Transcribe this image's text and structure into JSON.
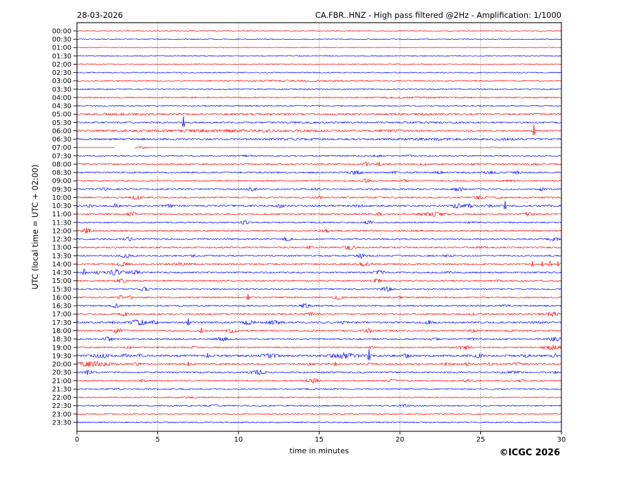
{
  "header": {
    "date": "28-03-2026",
    "station_title": "CA.FBR..HNZ - High pass filtered @2Hz - Amplification: 1/1000"
  },
  "footer": {
    "copyright": "©ICGC 2026"
  },
  "chart_data": {
    "type": "line",
    "subtype": "helicorder-seismogram",
    "title": "CA.FBR..HNZ - High pass filtered @2Hz - Amplification: 1/1000",
    "date": "28-03-2026",
    "xlabel": "time in minutes",
    "ylabel": "UTC (local time = UTC + 02:00)",
    "x_range": [
      0,
      30
    ],
    "x_ticks": [
      0,
      5,
      10,
      15,
      20,
      25,
      30
    ],
    "minutes_per_line": 30,
    "grid": "vertical-dotted-5min",
    "trace_colors": {
      "red": "#ff0000",
      "blue": "#0000ff"
    },
    "rows": [
      {
        "time": "00:00",
        "color": "red",
        "base": 0.3,
        "events": [
          [
            28.7,
            0.7,
            0.12
          ]
        ]
      },
      {
        "time": "00:30",
        "color": "blue",
        "base": 0.35,
        "events": []
      },
      {
        "time": "01:00",
        "color": "red",
        "base": 0.3,
        "events": []
      },
      {
        "time": "01:30",
        "color": "blue",
        "base": 0.4,
        "events": []
      },
      {
        "time": "02:00",
        "color": "red",
        "base": 0.35,
        "events": []
      },
      {
        "time": "02:30",
        "color": "blue",
        "base": 0.4,
        "events": []
      },
      {
        "time": "03:00",
        "color": "red",
        "base": 0.4,
        "events": [
          [
            13,
            0.25,
            3
          ]
        ]
      },
      {
        "time": "03:30",
        "color": "blue",
        "base": 0.45,
        "events": []
      },
      {
        "time": "04:00",
        "color": "red",
        "base": 0.5,
        "events": [
          [
            21,
            0.2,
            2
          ]
        ]
      },
      {
        "time": "04:30",
        "color": "blue",
        "base": 0.45,
        "events": []
      },
      {
        "time": "05:00",
        "color": "red",
        "base": 0.65,
        "events": [
          [
            3,
            0.2,
            1.5
          ],
          [
            13,
            0.2,
            1.5
          ],
          [
            21,
            0.25,
            1.5
          ]
        ]
      },
      {
        "time": "05:30",
        "color": "blue",
        "base": 0.55,
        "events": [
          [
            6.6,
            2.4,
            0.07
          ],
          [
            14,
            0.2,
            2
          ],
          [
            22,
            0.3,
            1.5
          ]
        ]
      },
      {
        "time": "06:00",
        "color": "red",
        "base": 0.55,
        "events": [
          [
            9,
            0.6,
            8
          ],
          [
            19.5,
            0.5,
            1
          ],
          [
            24.3,
            0.5,
            0.15
          ],
          [
            28.3,
            2.4,
            0.07
          ]
        ]
      },
      {
        "time": "06:30",
        "color": "blue",
        "base": 0.7,
        "events": [
          [
            13.5,
            0.4,
            1.2
          ],
          [
            22,
            0.45,
            1.5
          ],
          [
            26.5,
            0.4,
            0.6
          ]
        ]
      },
      {
        "time": "07:00",
        "color": "red",
        "base": 0.13,
        "events": [
          [
            4.05,
            0.85,
            0.35
          ],
          [
            25.9,
            0.5,
            0.5
          ]
        ],
        "gaps": [
          [
            2.35,
            3.55
          ]
        ]
      },
      {
        "time": "07:30",
        "color": "blue",
        "base": 0.45,
        "events": [
          [
            10.4,
            0.5,
            0.3
          ],
          [
            18.6,
            0.6,
            0.3
          ],
          [
            20.6,
            0.5,
            0.25
          ]
        ]
      },
      {
        "time": "08:00",
        "color": "red",
        "base": 0.55,
        "events": [
          [
            17.9,
            1.5,
            0.18
          ],
          [
            18.7,
            1.3,
            0.14
          ],
          [
            21.4,
            0.7,
            0.2
          ],
          [
            24.5,
            0.6,
            0.2
          ],
          [
            28.3,
            0.5,
            0.3
          ]
        ]
      },
      {
        "time": "08:30",
        "color": "blue",
        "base": 0.55,
        "events": [
          [
            17.3,
            1.6,
            0.3
          ],
          [
            19.6,
            0.6,
            0.2
          ],
          [
            22.4,
            0.7,
            0.25
          ],
          [
            25.6,
            0.8,
            0.4
          ],
          [
            27.3,
            0.9,
            0.25
          ]
        ]
      },
      {
        "time": "09:00",
        "color": "red",
        "base": 0.5,
        "events": [
          [
            17.9,
            1.7,
            0.22
          ],
          [
            20.3,
            0.9,
            0.15
          ],
          [
            26.8,
            0.5,
            0.3
          ]
        ]
      },
      {
        "time": "09:30",
        "color": "blue",
        "base": 0.55,
        "events": [
          [
            1.7,
            1.5,
            0.22
          ],
          [
            10.8,
            1.1,
            0.3
          ],
          [
            14.8,
            0.6,
            0.2
          ],
          [
            23.7,
            1.5,
            0.3
          ],
          [
            28.8,
            1.1,
            0.2
          ]
        ]
      },
      {
        "time": "10:00",
        "color": "red",
        "base": 0.55,
        "events": [
          [
            3.7,
            1.5,
            0.28
          ],
          [
            15.0,
            0.9,
            0.2
          ],
          [
            24.9,
            1.3,
            0.3
          ],
          [
            26.2,
            0.9,
            0.2
          ]
        ]
      },
      {
        "time": "10:30",
        "color": "blue",
        "base": 0.62,
        "events": [
          [
            0.8,
            1.1,
            0.15
          ],
          [
            2.4,
            1.3,
            0.2
          ],
          [
            5.7,
            1.2,
            0.18
          ],
          [
            12.6,
            1.1,
            0.2
          ],
          [
            17.4,
            0.7,
            0.3
          ],
          [
            23.6,
            1.5,
            0.4
          ],
          [
            24.3,
            1.2,
            0.2
          ],
          [
            25.6,
            0.9,
            0.2
          ],
          [
            26.5,
            1.9,
            0.07
          ],
          [
            29.2,
            0.7,
            0.2
          ]
        ]
      },
      {
        "time": "11:00",
        "color": "red",
        "base": 0.55,
        "events": [
          [
            3.4,
            1.7,
            0.28
          ],
          [
            18.7,
            1.0,
            0.2
          ],
          [
            22.0,
            1.5,
            0.7
          ],
          [
            27.9,
            1.4,
            0.28
          ]
        ]
      },
      {
        "time": "11:30",
        "color": "blue",
        "base": 0.5,
        "events": [
          [
            10.4,
            1.5,
            0.22
          ],
          [
            18.1,
            1.4,
            0.22
          ],
          [
            24.5,
            0.5,
            0.3
          ]
        ]
      },
      {
        "time": "12:00",
        "color": "red",
        "base": 0.55,
        "events": [
          [
            0.6,
            2.0,
            0.25
          ],
          [
            15.4,
            1.3,
            0.22
          ],
          [
            21,
            0.5,
            0.3
          ]
        ]
      },
      {
        "time": "12:30",
        "color": "blue",
        "base": 0.5,
        "events": [
          [
            3.2,
            1.4,
            0.22
          ],
          [
            13.0,
            1.3,
            0.25
          ],
          [
            29.5,
            1.6,
            0.3
          ]
        ]
      },
      {
        "time": "13:00",
        "color": "red",
        "base": 0.55,
        "events": [
          [
            14.4,
            0.9,
            0.2
          ],
          [
            16.9,
            1.5,
            0.3
          ],
          [
            25,
            0.5,
            0.3
          ]
        ]
      },
      {
        "time": "13:30",
        "color": "blue",
        "base": 0.55,
        "events": [
          [
            3.0,
            1.5,
            0.28
          ],
          [
            7.2,
            0.9,
            0.15
          ],
          [
            17.6,
            1.7,
            0.3
          ],
          [
            23,
            0.5,
            0.3
          ]
        ]
      },
      {
        "time": "14:00",
        "color": "red",
        "base": 0.6,
        "events": [
          [
            2.8,
            1.5,
            0.28
          ],
          [
            6.5,
            0.6,
            0.8
          ],
          [
            17.8,
            1.3,
            0.4
          ],
          [
            28.2,
            1.1,
            0.09
          ],
          [
            28.8,
            1.1,
            0.09
          ],
          [
            29.3,
            1.1,
            0.09
          ],
          [
            29.8,
            1.0,
            0.09
          ]
        ]
      },
      {
        "time": "14:30",
        "color": "blue",
        "base": 0.55,
        "events": [
          [
            0.45,
            1.3,
            0.09
          ],
          [
            1.3,
            0.9,
            0.2
          ],
          [
            2.4,
            2.2,
            0.45
          ],
          [
            3.6,
            1.3,
            0.4
          ],
          [
            18.7,
            1.5,
            0.3
          ],
          [
            23,
            0.4,
            0.3
          ]
        ]
      },
      {
        "time": "15:00",
        "color": "red",
        "base": 0.5,
        "events": [
          [
            2.8,
            1.7,
            0.25
          ],
          [
            18.6,
            1.5,
            0.25
          ],
          [
            26,
            0.4,
            0.3
          ]
        ]
      },
      {
        "time": "15:30",
        "color": "blue",
        "base": 0.5,
        "events": [
          [
            4.2,
            1.4,
            0.28
          ],
          [
            19.2,
            1.5,
            0.32
          ]
        ]
      },
      {
        "time": "16:00",
        "color": "red",
        "base": 0.55,
        "events": [
          [
            2.7,
            1.5,
            0.14
          ],
          [
            3.3,
            1.5,
            0.14
          ],
          [
            10.6,
            1.3,
            0.1
          ],
          [
            16.2,
            1.3,
            0.28
          ],
          [
            20.0,
            0.7,
            0.15
          ]
        ]
      },
      {
        "time": "16:30",
        "color": "blue",
        "base": 0.55,
        "events": [
          [
            2.4,
            1.4,
            0.22
          ],
          [
            14.1,
            1.5,
            0.28
          ],
          [
            26.5,
            0.5,
            0.3
          ]
        ]
      },
      {
        "time": "17:00",
        "color": "red",
        "base": 0.55,
        "events": [
          [
            2.9,
            1.5,
            0.22
          ],
          [
            14.5,
            1.3,
            0.22
          ],
          [
            24.5,
            0.5,
            0.2
          ],
          [
            29.4,
            1.5,
            0.5
          ]
        ]
      },
      {
        "time": "17:30",
        "color": "blue",
        "base": 0.62,
        "events": [
          [
            2.3,
            1.7,
            0.14
          ],
          [
            3.8,
            2.0,
            0.5
          ],
          [
            4.8,
            1.2,
            0.2
          ],
          [
            6.9,
            1.6,
            0.07
          ],
          [
            10.6,
            1.5,
            0.3
          ],
          [
            12.2,
            1.4,
            0.4
          ],
          [
            16.5,
            0.6,
            0.3
          ],
          [
            21.8,
            1.2,
            0.3
          ],
          [
            28.5,
            0.9,
            0.3
          ]
        ]
      },
      {
        "time": "18:00",
        "color": "red",
        "base": 0.55,
        "events": [
          [
            2.5,
            1.7,
            0.3
          ],
          [
            7.7,
            1.2,
            0.07
          ],
          [
            9.6,
            1.4,
            0.3
          ],
          [
            18.0,
            1.5,
            0.3
          ],
          [
            24.6,
            1.4,
            0.22
          ],
          [
            27,
            0.5,
            0.3
          ]
        ]
      },
      {
        "time": "18:30",
        "color": "blue",
        "base": 0.55,
        "events": [
          [
            1.9,
            1.5,
            0.3
          ],
          [
            9.0,
            1.4,
            0.3
          ],
          [
            22.2,
            0.6,
            0.3
          ],
          [
            24.5,
            0.7,
            0.2
          ],
          [
            29.6,
            1.5,
            0.4
          ]
        ]
      },
      {
        "time": "19:00",
        "color": "red",
        "base": 0.5,
        "events": [
          [
            3.2,
            0.8,
            0.2
          ],
          [
            7.2,
            0.7,
            0.2
          ],
          [
            18.2,
            0.7,
            0.2
          ],
          [
            24.0,
            1.4,
            0.4
          ],
          [
            29.4,
            1.6,
            0.5
          ]
        ]
      },
      {
        "time": "19:30",
        "color": "blue",
        "base": 0.75,
        "events": [
          [
            1.5,
            1.4,
            0.4
          ],
          [
            3.0,
            1.1,
            0.15
          ],
          [
            3.9,
            1.1,
            0.15
          ],
          [
            8.1,
            1.0,
            0.08
          ],
          [
            12.0,
            1.1,
            0.5
          ],
          [
            16.5,
            1.8,
            0.8
          ],
          [
            18.1,
            2.6,
            0.08
          ],
          [
            20.4,
            1.3,
            0.2
          ],
          [
            24.9,
            1.2,
            0.25
          ],
          [
            27.8,
            0.9,
            0.2
          ],
          [
            29.6,
            1.1,
            0.2
          ]
        ]
      },
      {
        "time": "20:00",
        "color": "red",
        "base": 0.6,
        "events": [
          [
            1.0,
            1.9,
            1.0
          ],
          [
            3.7,
            1.1,
            0.2
          ],
          [
            6.9,
            0.9,
            0.08
          ],
          [
            14.4,
            1.0,
            0.2
          ],
          [
            16.0,
            0.9,
            0.08
          ],
          [
            18.1,
            0.8,
            0.15
          ],
          [
            22.9,
            1.0,
            0.25
          ],
          [
            24.2,
            1.1,
            0.15
          ],
          [
            25.6,
            0.9,
            0.15
          ],
          [
            27.2,
            0.8,
            0.3
          ]
        ]
      },
      {
        "time": "20:30",
        "color": "blue",
        "base": 0.52,
        "events": [
          [
            0.7,
            1.9,
            0.28
          ],
          [
            11.2,
            1.7,
            0.45
          ],
          [
            19.4,
            0.8,
            0.12
          ],
          [
            27,
            0.6,
            0.6
          ],
          [
            29.6,
            0.9,
            0.15
          ]
        ]
      },
      {
        "time": "21:00",
        "color": "red",
        "base": 0.5,
        "events": [
          [
            4.1,
            0.9,
            0.2
          ],
          [
            14.6,
            1.6,
            0.35
          ],
          [
            19.5,
            0.6,
            0.4
          ],
          [
            24.2,
            1.2,
            0.3
          ],
          [
            27.5,
            0.8,
            0.2
          ]
        ]
      },
      {
        "time": "21:30",
        "color": "blue",
        "base": 0.48,
        "events": [
          [
            2.5,
            0.5,
            0.3
          ],
          [
            15,
            0.3,
            1
          ]
        ]
      },
      {
        "time": "22:00",
        "color": "red",
        "base": 0.42,
        "events": [
          [
            7,
            0.25,
            1
          ]
        ]
      },
      {
        "time": "22:30",
        "color": "blue",
        "base": 0.48,
        "events": [
          [
            8.5,
            0.5,
            0.4
          ],
          [
            20.3,
            0.7,
            0.3
          ]
        ]
      },
      {
        "time": "23:00",
        "color": "red",
        "base": 0.42,
        "events": []
      },
      {
        "time": "23:30",
        "color": "blue",
        "base": 0.48,
        "events": []
      }
    ]
  }
}
